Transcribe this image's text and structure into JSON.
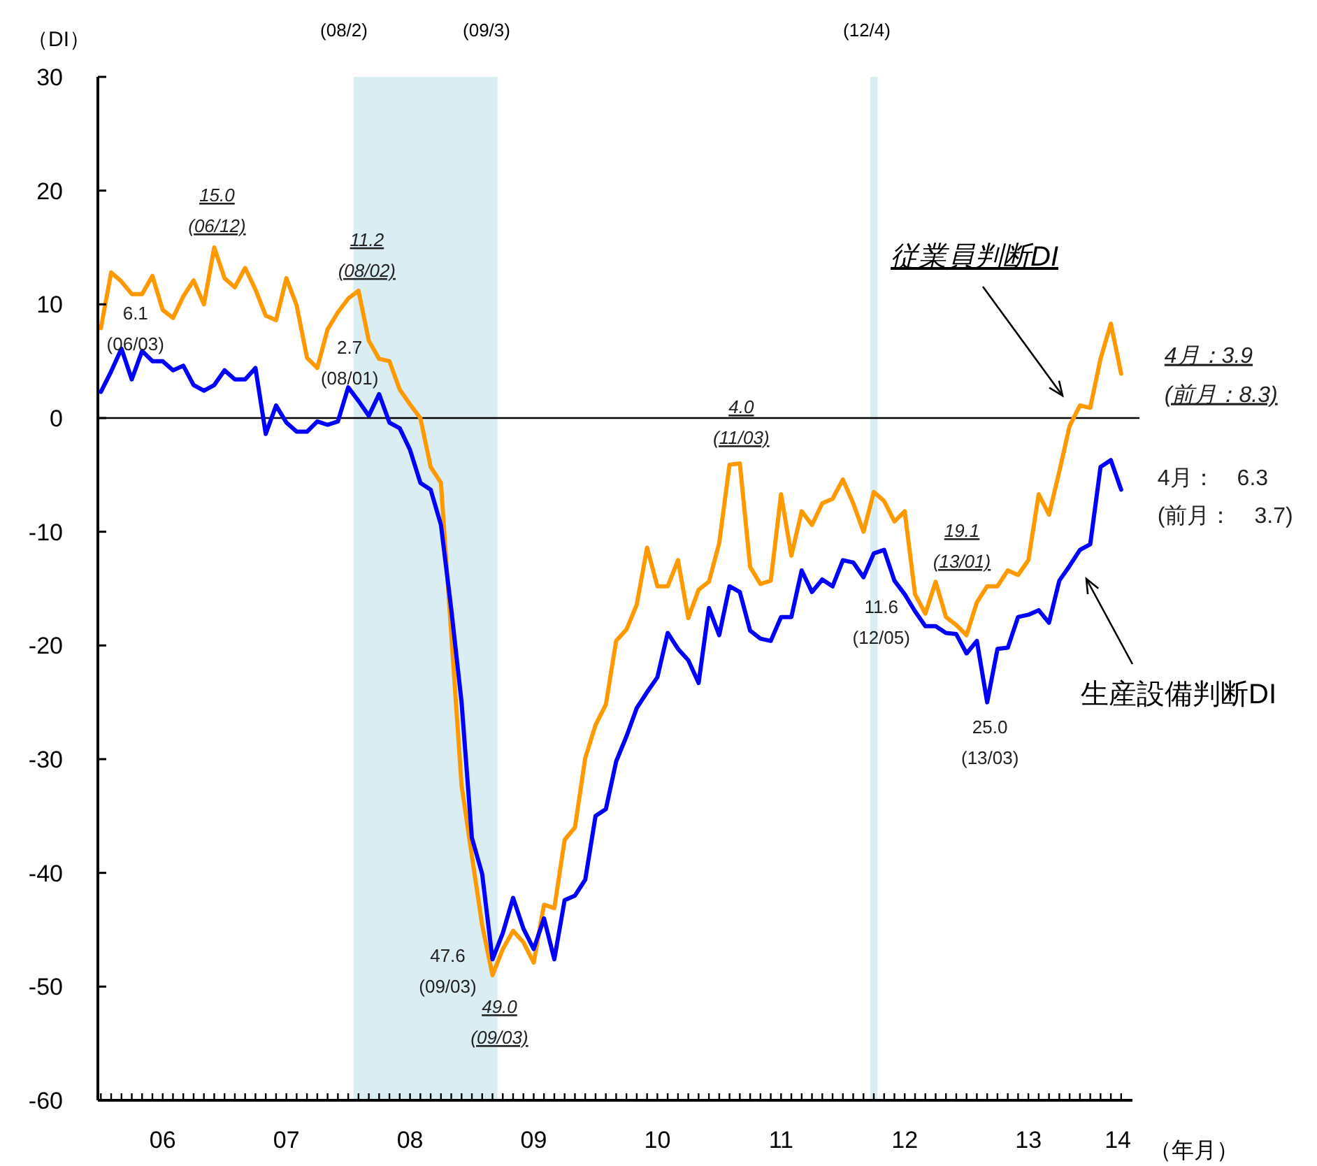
{
  "chart_data": {
    "type": "line",
    "xlabel": "（年月）",
    "ylabel": "（DI）",
    "x": [
      "2006-01",
      "2006-02",
      "2006-03",
      "2006-04",
      "2006-05",
      "2006-06",
      "2006-07",
      "2006-08",
      "2006-09",
      "2006-10",
      "2006-11",
      "2006-12",
      "2007-01",
      "2007-02",
      "2007-03",
      "2007-04",
      "2007-05",
      "2007-06",
      "2007-07",
      "2007-08",
      "2007-09",
      "2007-10",
      "2007-11",
      "2007-12",
      "2008-01",
      "2008-02",
      "2008-03",
      "2008-04",
      "2008-05",
      "2008-06",
      "2008-07",
      "2008-08",
      "2008-09",
      "2008-10",
      "2008-11",
      "2008-12",
      "2009-01",
      "2009-02",
      "2009-03",
      "2009-04",
      "2009-05",
      "2009-06",
      "2009-07",
      "2009-08",
      "2009-09",
      "2009-10",
      "2009-11",
      "2009-12",
      "2010-01",
      "2010-02",
      "2010-03",
      "2010-04",
      "2010-05",
      "2010-06",
      "2010-07",
      "2010-08",
      "2010-09",
      "2010-10",
      "2010-11",
      "2010-12",
      "2011-01",
      "2011-02",
      "2011-03",
      "2011-04",
      "2011-05",
      "2011-06",
      "2011-07",
      "2011-08",
      "2011-09",
      "2011-10",
      "2011-11",
      "2011-12",
      "2012-01",
      "2012-02",
      "2012-03",
      "2012-04",
      "2012-05",
      "2012-06",
      "2012-07",
      "2012-08",
      "2012-09",
      "2012-10",
      "2012-11",
      "2012-12",
      "2013-01",
      "2013-02",
      "2013-03",
      "2013-04",
      "2013-05",
      "2013-06",
      "2013-07",
      "2013-08",
      "2013-09",
      "2013-10",
      "2013-11",
      "2013-12",
      "2014-01",
      "2014-02",
      "2014-03",
      "2014-04"
    ],
    "series": [
      {
        "name": "従業員判断DI",
        "color": "#ff9900",
        "values": [
          7.9,
          12.8,
          12.0,
          10.9,
          10.9,
          12.5,
          9.5,
          8.8,
          10.7,
          12.1,
          10.0,
          15.0,
          12.3,
          11.5,
          13.2,
          11.3,
          9.0,
          8.6,
          12.3,
          9.9,
          5.3,
          4.4,
          7.8,
          9.3,
          10.5,
          11.2,
          6.8,
          5.2,
          5.0,
          2.5,
          1.2,
          0.0,
          -4.3,
          -5.7,
          -19.0,
          -32.3,
          -38.5,
          -44.6,
          -49.0,
          -46.7,
          -45.1,
          -46.1,
          -47.9,
          -42.8,
          -43.1,
          -37.1,
          -36.0,
          -29.9,
          -27.0,
          -25.2,
          -19.6,
          -18.6,
          -16.4,
          -11.4,
          -14.8,
          -14.8,
          -12.5,
          -17.6,
          -15.1,
          -14.4,
          -11.0,
          -4.1,
          -4.0,
          -13.1,
          -14.6,
          -14.3,
          -6.7,
          -12.1,
          -8.2,
          -9.4,
          -7.5,
          -7.1,
          -5.4,
          -7.5,
          -10.0,
          -6.5,
          -7.3,
          -9.1,
          -8.2,
          -15.5,
          -17.2,
          -14.4,
          -17.5,
          -18.2,
          -19.1,
          -16.2,
          -14.8,
          -14.8,
          -13.4,
          -13.8,
          -12.5,
          -6.7,
          -8.5,
          -4.7,
          -0.7,
          1.1,
          0.9,
          5.2,
          8.3,
          3.9
        ]
      },
      {
        "name": "生産設備判断DI",
        "color": "#0000ff",
        "values": [
          2.3,
          4.1,
          6.1,
          3.4,
          5.9,
          5.0,
          5.0,
          4.2,
          4.6,
          2.9,
          2.4,
          2.9,
          4.2,
          3.4,
          3.4,
          4.4,
          -1.4,
          1.1,
          -0.4,
          -1.2,
          -1.2,
          -0.3,
          -0.6,
          -0.3,
          2.7,
          1.5,
          0.2,
          2.1,
          -0.4,
          -0.9,
          -2.8,
          -5.7,
          -6.3,
          -9.4,
          -16.8,
          -25.0,
          -36.9,
          -40.1,
          -47.6,
          -45.3,
          -42.2,
          -44.9,
          -46.7,
          -44.0,
          -47.6,
          -42.4,
          -42.0,
          -40.6,
          -35.0,
          -34.4,
          -30.2,
          -28.0,
          -25.5,
          -24.1,
          -22.8,
          -18.9,
          -20.3,
          -21.3,
          -23.3,
          -16.7,
          -19.1,
          -14.8,
          -15.3,
          -18.7,
          -19.4,
          -19.6,
          -17.5,
          -17.5,
          -13.4,
          -15.3,
          -14.2,
          -14.8,
          -12.5,
          -12.7,
          -14.0,
          -11.9,
          -11.6,
          -14.3,
          -15.5,
          -17.0,
          -18.3,
          -18.3,
          -18.9,
          -19.0,
          -20.7,
          -19.6,
          -25.0,
          -20.3,
          -20.2,
          -17.5,
          -17.3,
          -16.9,
          -18.0,
          -14.3,
          -13.0,
          -11.6,
          -11.1,
          -4.3,
          -3.7,
          -6.3
        ]
      }
    ],
    "xlim": [
      "2005-12-23",
      "2014-05-04"
    ],
    "xticks": [
      {
        "value": "2006-07-01",
        "label": "06"
      },
      {
        "value": "2007-07-01",
        "label": "07"
      },
      {
        "value": "2008-07-01",
        "label": "08"
      },
      {
        "value": "2009-07-01",
        "label": "09"
      },
      {
        "value": "2010-07-01",
        "label": "10"
      },
      {
        "value": "2011-07-01",
        "label": "11"
      },
      {
        "value": "2012-07-01",
        "label": "12"
      },
      {
        "value": "2013-07-01",
        "label": "13"
      },
      {
        "value": "2014-03-22",
        "label": "14"
      },
      {
        "value": "2006-01",
        "label": null
      },
      {
        "value": "2006-02",
        "label": null
      },
      {
        "value": "2006-03",
        "label": null
      },
      {
        "value": "2006-04",
        "label": null
      },
      {
        "value": "2006-05",
        "label": null
      },
      {
        "value": "2006-06",
        "label": null
      },
      {
        "value": "2006-07",
        "label": null
      },
      {
        "value": "2006-08",
        "label": null
      },
      {
        "value": "2006-09",
        "label": null
      },
      {
        "value": "2006-10",
        "label": null
      },
      {
        "value": "2006-11",
        "label": null
      },
      {
        "value": "2006-12",
        "label": null
      },
      {
        "value": "2007-01",
        "label": null
      },
      {
        "value": "2007-02",
        "label": null
      },
      {
        "value": "2007-03",
        "label": null
      },
      {
        "value": "2007-04",
        "label": null
      },
      {
        "value": "2007-05",
        "label": null
      },
      {
        "value": "2007-06",
        "label": null
      },
      {
        "value": "2007-07",
        "label": null
      },
      {
        "value": "2007-08",
        "label": null
      },
      {
        "value": "2007-09",
        "label": null
      },
      {
        "value": "2007-10",
        "label": null
      },
      {
        "value": "2007-11",
        "label": null
      },
      {
        "value": "2007-12",
        "label": null
      },
      {
        "value": "2008-01",
        "label": null
      },
      {
        "value": "2008-02",
        "label": null
      },
      {
        "value": "2008-03",
        "label": null
      },
      {
        "value": "2008-04",
        "label": null
      },
      {
        "value": "2008-05",
        "label": null
      },
      {
        "value": "2008-06",
        "label": null
      },
      {
        "value": "2008-07",
        "label": null
      },
      {
        "value": "2008-08",
        "label": null
      },
      {
        "value": "2008-09",
        "label": null
      },
      {
        "value": "2008-10",
        "label": null
      },
      {
        "value": "2008-11",
        "label": null
      },
      {
        "value": "2008-12",
        "label": null
      },
      {
        "value": "2009-01",
        "label": null
      },
      {
        "value": "2009-02",
        "label": null
      },
      {
        "value": "2009-03",
        "label": null
      },
      {
        "value": "2009-04",
        "label": null
      },
      {
        "value": "2009-05",
        "label": null
      },
      {
        "value": "2009-06",
        "label": null
      },
      {
        "value": "2009-07",
        "label": null
      },
      {
        "value": "2009-08",
        "label": null
      },
      {
        "value": "2009-09",
        "label": null
      },
      {
        "value": "2009-10",
        "label": null
      },
      {
        "value": "2009-11",
        "label": null
      },
      {
        "value": "2009-12",
        "label": null
      },
      {
        "value": "2010-01",
        "label": null
      },
      {
        "value": "2010-02",
        "label": null
      },
      {
        "value": "2010-03",
        "label": null
      },
      {
        "value": "2010-04",
        "label": null
      },
      {
        "value": "2010-05",
        "label": null
      },
      {
        "value": "2010-06",
        "label": null
      },
      {
        "value": "2010-07",
        "label": null
      },
      {
        "value": "2010-08",
        "label": null
      },
      {
        "value": "2010-09",
        "label": null
      },
      {
        "value": "2010-10",
        "label": null
      },
      {
        "value": "2010-11",
        "label": null
      },
      {
        "value": "2010-12",
        "label": null
      },
      {
        "value": "2011-01",
        "label": null
      },
      {
        "value": "2011-02",
        "label": null
      },
      {
        "value": "2011-03",
        "label": null
      },
      {
        "value": "2011-04",
        "label": null
      },
      {
        "value": "2011-05",
        "label": null
      },
      {
        "value": "2011-06",
        "label": null
      },
      {
        "value": "2011-07",
        "label": null
      },
      {
        "value": "2011-08",
        "label": null
      },
      {
        "value": "2011-09",
        "label": null
      },
      {
        "value": "2011-10",
        "label": null
      },
      {
        "value": "2011-11",
        "label": null
      },
      {
        "value": "2011-12",
        "label": null
      },
      {
        "value": "2012-01",
        "label": null
      },
      {
        "value": "2012-02",
        "label": null
      },
      {
        "value": "2012-03",
        "label": null
      },
      {
        "value": "2012-04",
        "label": null
      },
      {
        "value": "2012-05",
        "label": null
      },
      {
        "value": "2012-06",
        "label": null
      },
      {
        "value": "2012-07",
        "label": null
      },
      {
        "value": "2012-08",
        "label": null
      },
      {
        "value": "2012-09",
        "label": null
      },
      {
        "value": "2012-10",
        "label": null
      },
      {
        "value": "2012-11",
        "label": null
      },
      {
        "value": "2012-12",
        "label": null
      },
      {
        "value": "2013-01",
        "label": null
      },
      {
        "value": "2013-02",
        "label": null
      },
      {
        "value": "2013-03",
        "label": null
      },
      {
        "value": "2013-04",
        "label": null
      },
      {
        "value": "2013-05",
        "label": null
      },
      {
        "value": "2013-06",
        "label": null
      },
      {
        "value": "2013-07",
        "label": null
      },
      {
        "value": "2013-08",
        "label": null
      },
      {
        "value": "2013-09",
        "label": null
      },
      {
        "value": "2013-10",
        "label": null
      },
      {
        "value": "2013-11",
        "label": null
      },
      {
        "value": "2013-12",
        "label": null
      },
      {
        "value": "2014-01",
        "label": null
      },
      {
        "value": "2014-02",
        "label": null
      },
      {
        "value": "2014-03",
        "label": null
      },
      {
        "value": "2014-04",
        "label": null
      }
    ],
    "ylim": [
      -60,
      30
    ],
    "yticks": [
      30,
      20,
      10,
      0,
      -10,
      -20,
      -30,
      -40,
      -50,
      -60
    ],
    "ref_lines": [
      {
        "axis": "y",
        "value": 0,
        "color": "#000000"
      }
    ],
    "bands": [
      {
        "axis": "x",
        "from": "2008-01-17",
        "to": "2009-03-16",
        "color": "#daedf3"
      },
      {
        "axis": "x",
        "from": "2012-03-21",
        "to": "2012-04-12",
        "color": "#daedf3"
      }
    ],
    "annotations": [
      {
        "text": "15.0\n(06/12)",
        "x": "2006-12",
        "y": 15.0
      },
      {
        "text": "6.1\n(06/03)",
        "x": "2006-03",
        "y": 6.1
      },
      {
        "text": "11.2\n(08/02)",
        "x": "2008-02",
        "y": 11.2
      },
      {
        "text": "2.7\n(08/01)",
        "x": "2008-01",
        "y": 2.7
      },
      {
        "text": "47.6\n(09/03)",
        "x": "2009-03",
        "y": -47.6
      },
      {
        "text": "49.0\n(09/03)",
        "x": "2009-03",
        "y": -49.0
      },
      {
        "text": "4.0\n(11/03)",
        "x": "2011-03",
        "y": -4.0
      },
      {
        "text": "11.6\n(12/05)",
        "x": "2012-05",
        "y": -11.6
      },
      "19.1\n(13/01)",
      {
        "text": "25.0\n(13/03)",
        "x": "2013-03",
        "y": -25.0
      },
      {
        "text": "4月：3.9\n(前月：8.3)",
        "x": "2014-04",
        "y": 3.9
      },
      {
        "text": "4月：　6.3\n(前月：　3.7)",
        "x": "2014-04",
        "y": -6.3
      },
      "(08/2)",
      "(09/3)",
      "(12/4)"
    ],
    "grid": false,
    "legend": false,
    "marker": "none",
    "line_style": "solid"
  }
}
